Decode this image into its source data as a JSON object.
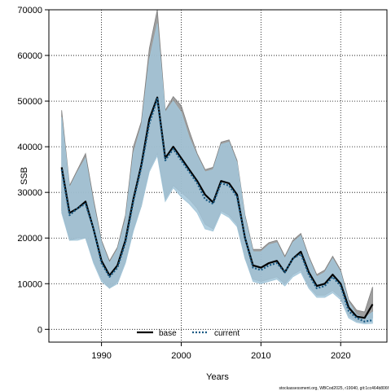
{
  "chart_data": {
    "type": "line",
    "title": "",
    "xlabel": "Years",
    "ylabel": "SSB",
    "xlim": [
      1983.4,
      2025.8
    ],
    "ylim": [
      -2800,
      70000
    ],
    "x_ticks": [
      1990,
      2000,
      2010,
      2020
    ],
    "y_ticks": [
      0,
      10000,
      20000,
      30000,
      40000,
      50000,
      60000,
      70000
    ],
    "grid": true,
    "grid_style": "dotted",
    "legend_position": "bottom-center",
    "years": [
      1985,
      1986,
      1987,
      1988,
      1989,
      1990,
      1991,
      1992,
      1993,
      1994,
      1995,
      1996,
      1997,
      1998,
      1999,
      2000,
      2001,
      2002,
      2003,
      2004,
      2005,
      2006,
      2007,
      2008,
      2009,
      2010,
      2011,
      2012,
      2013,
      2014,
      2015,
      2016,
      2017,
      2018,
      2019,
      2020,
      2021,
      2022,
      2023,
      2024
    ],
    "series": [
      {
        "name": "base",
        "color": "#000000",
        "band_color": "#7f7f7f",
        "values": [
          35500,
          25500,
          26500,
          28000,
          22000,
          15000,
          11800,
          14000,
          19500,
          28500,
          36000,
          46000,
          50800,
          37500,
          40000,
          37500,
          35000,
          32500,
          29500,
          27800,
          32500,
          32000,
          29500,
          20000,
          14000,
          13500,
          14500,
          15000,
          12500,
          15500,
          17000,
          12500,
          9500,
          10000,
          12000,
          10000,
          4800,
          2800,
          2500,
          5500
        ],
        "lower": [
          26000,
          19500,
          20000,
          20000,
          15000,
          11000,
          9000,
          10500,
          15000,
          22000,
          27000,
          35000,
          38500,
          28500,
          31500,
          30000,
          28500,
          26500,
          23000,
          22000,
          26000,
          25000,
          23000,
          15500,
          11000,
          10500,
          11000,
          11500,
          10000,
          12000,
          13000,
          9500,
          7500,
          7500,
          8500,
          7000,
          3000,
          1800,
          1500,
          2500
        ],
        "upper": [
          48000,
          31500,
          35000,
          38500,
          28500,
          19500,
          15000,
          18000,
          25000,
          40000,
          45500,
          61500,
          70000,
          48000,
          51000,
          49000,
          43500,
          38500,
          35000,
          35500,
          41000,
          41500,
          37000,
          25000,
          17500,
          17500,
          19000,
          19500,
          16000,
          19500,
          21000,
          16000,
          12000,
          13000,
          16000,
          13000,
          6500,
          4200,
          3800,
          9300
        ]
      },
      {
        "name": "current",
        "color": "#1a5a84",
        "band_color": "#a3c6d9",
        "values": [
          35000,
          25000,
          26500,
          27500,
          22000,
          14500,
          11500,
          13500,
          19000,
          28000,
          35500,
          45000,
          50500,
          37000,
          39500,
          37000,
          34500,
          32000,
          28500,
          27500,
          32000,
          31500,
          29000,
          20000,
          13500,
          13000,
          14000,
          14500,
          12500,
          15500,
          16500,
          12000,
          9000,
          9500,
          11500,
          9500,
          4000,
          2500,
          1700,
          2000
        ],
        "lower": [
          25500,
          19500,
          19500,
          20000,
          14500,
          10500,
          9000,
          10000,
          14500,
          21500,
          27000,
          34500,
          38000,
          28000,
          31000,
          29000,
          27500,
          25500,
          22000,
          21500,
          25500,
          24500,
          22500,
          15500,
          10500,
          10000,
          10500,
          11000,
          9500,
          11500,
          12500,
          9000,
          7000,
          7000,
          8000,
          6500,
          2500,
          1500,
          1200,
          1300
        ],
        "upper": [
          46500,
          31000,
          34500,
          37500,
          27500,
          19000,
          14500,
          17500,
          24000,
          38500,
          44500,
          59000,
          67000,
          47500,
          50000,
          47500,
          42000,
          38000,
          34500,
          35000,
          40500,
          41000,
          36500,
          24500,
          17000,
          17000,
          18500,
          19000,
          15500,
          19000,
          20500,
          15500,
          11500,
          12500,
          15500,
          12500,
          6000,
          3200,
          2500,
          3800
        ]
      }
    ]
  },
  "footer": "stockassessment.org, WBCod2025, r19040, git:1cc464b806f"
}
